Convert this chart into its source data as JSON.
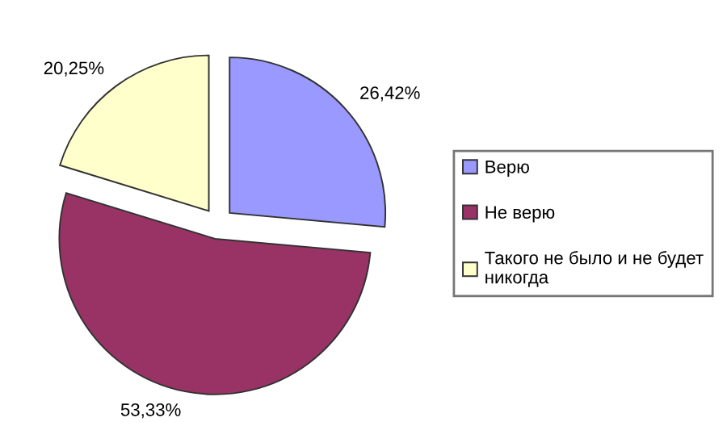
{
  "chart_data": {
    "type": "pie",
    "categories": [
      "Верю",
      "Не верю",
      "Такого не было и не будет никогда"
    ],
    "values": [
      26.42,
      53.33,
      20.25
    ],
    "value_labels": [
      "26,42%",
      "53,33%",
      "20,25%"
    ],
    "colors": [
      "#9999ff",
      "#993366",
      "#ffffcc"
    ],
    "legend": "right"
  }
}
